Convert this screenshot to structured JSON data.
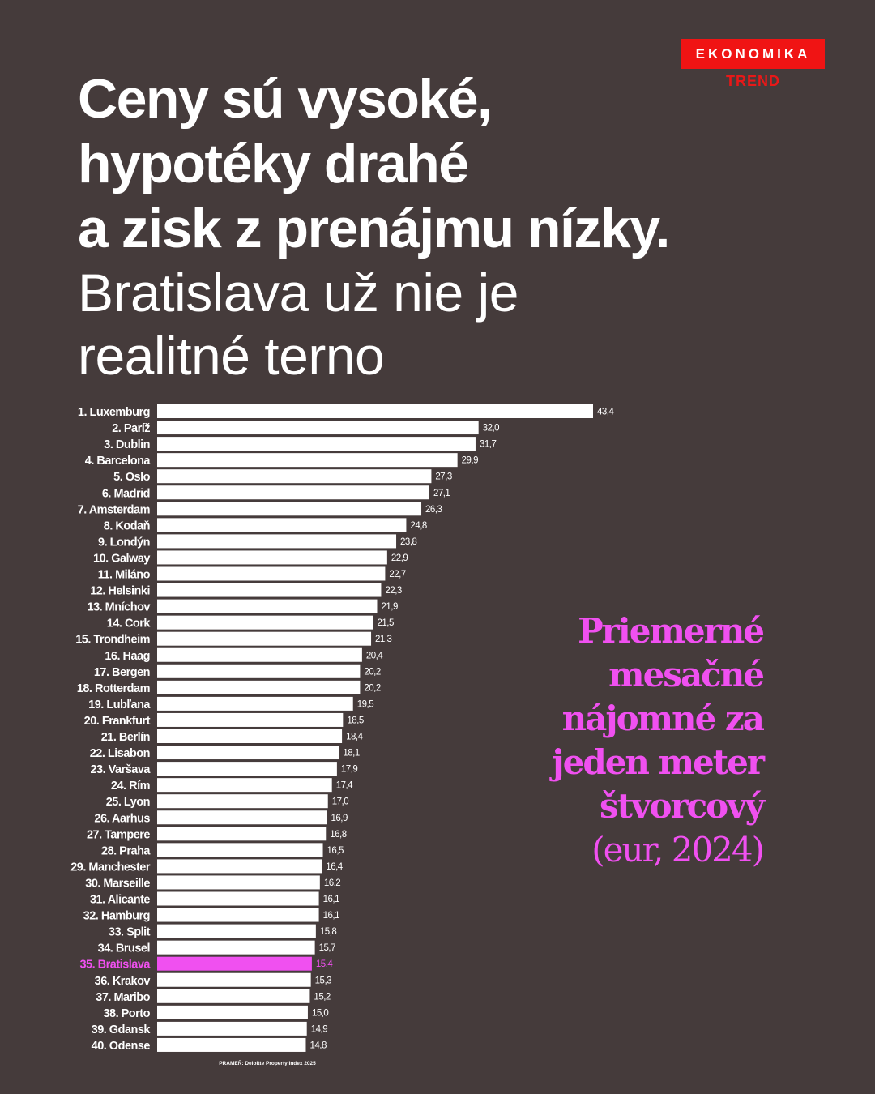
{
  "brand": {
    "top": "EKONOMIKA",
    "bottom": "TREND"
  },
  "headline": [
    "Ceny sú vysoké,",
    "hypotéky drahé",
    "a zisk z prenájmu nízky."
  ],
  "subheadline": [
    "Bratislava už nie je",
    "realitné terno"
  ],
  "colors": {
    "background": "#453b3b",
    "bar": "#ffffff",
    "highlight": "#f050f0",
    "brand": "#f01414"
  },
  "chart_data": {
    "type": "bar",
    "orientation": "horizontal",
    "title": "Priemerné mesačné nájomné za jeden meter štvorcový",
    "title_lines": [
      "Priemerné",
      "mesačné",
      "nájomné za",
      "jeden meter",
      "štvorcový"
    ],
    "unit": "(eur, 2024)",
    "source": "PRAMEŇ: Deloitte Property Index 2025",
    "highlight": "35. Bratislava",
    "xlim": [
      0,
      43.4
    ],
    "categories": [
      "1. Luxemburg",
      "2. Paríž",
      "3. Dublin",
      "4. Barcelona",
      "5. Oslo",
      "6. Madrid",
      "7. Amsterdam",
      "8. Kodaň",
      "9. Londýn",
      "10. Galway",
      "11. Miláno",
      "12. Helsinki",
      "13. Mníchov",
      "14. Cork",
      "15. Trondheim",
      "16. Haag",
      "17. Bergen",
      "18. Rotterdam",
      "19. Lubľana",
      "20. Frankfurt",
      "21. Berlín",
      "22. Lisabon",
      "23. Varšava",
      "24. Rím",
      "25. Lyon",
      "26. Aarhus",
      "27. Tampere",
      "28. Praha",
      "29. Manchester",
      "30. Marseille",
      "31. Alicante",
      "32. Hamburg",
      "33. Split",
      "34. Brusel",
      "35. Bratislava",
      "36. Krakov",
      "37. Maribo",
      "38. Porto",
      "39. Gdansk",
      "40. Odense"
    ],
    "values": [
      43.4,
      32.0,
      31.7,
      29.9,
      27.3,
      27.1,
      26.3,
      24.8,
      23.8,
      22.9,
      22.7,
      22.3,
      21.9,
      21.5,
      21.3,
      20.4,
      20.2,
      20.2,
      19.5,
      18.5,
      18.4,
      18.1,
      17.9,
      17.4,
      17.0,
      16.9,
      16.8,
      16.5,
      16.4,
      16.2,
      16.1,
      16.1,
      15.8,
      15.7,
      15.4,
      15.3,
      15.2,
      15.0,
      14.9,
      14.8
    ]
  }
}
